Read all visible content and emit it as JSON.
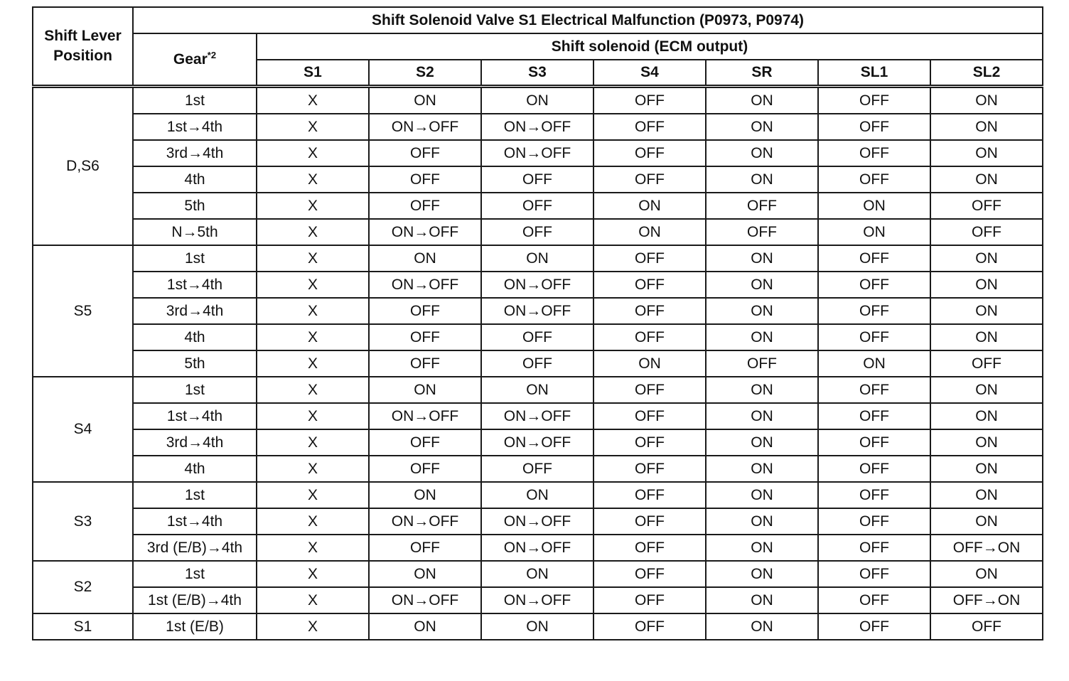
{
  "header": {
    "shift_lever_position": "Shift Lever Position",
    "gear": "Gear",
    "gear_note": "*2",
    "title": "Shift Solenoid Valve S1 Electrical Malfunction (P0973, P0974)",
    "solenoid_group": "Shift solenoid (ECM output)",
    "solenoids": [
      "S1",
      "S2",
      "S3",
      "S4",
      "SR",
      "SL1",
      "SL2"
    ]
  },
  "groups": [
    {
      "position": "D,S6",
      "rows": [
        {
          "gear": "1st",
          "values": [
            "X",
            "ON",
            "ON",
            "OFF",
            "ON",
            "OFF",
            "ON"
          ]
        },
        {
          "gear": "1st→4th",
          "values": [
            "X",
            "ON→OFF",
            "ON→OFF",
            "OFF",
            "ON",
            "OFF",
            "ON"
          ]
        },
        {
          "gear": "3rd→4th",
          "values": [
            "X",
            "OFF",
            "ON→OFF",
            "OFF",
            "ON",
            "OFF",
            "ON"
          ]
        },
        {
          "gear": "4th",
          "values": [
            "X",
            "OFF",
            "OFF",
            "OFF",
            "ON",
            "OFF",
            "ON"
          ]
        },
        {
          "gear": "5th",
          "values": [
            "X",
            "OFF",
            "OFF",
            "ON",
            "OFF",
            "ON",
            "OFF"
          ]
        },
        {
          "gear": "N→5th",
          "values": [
            "X",
            "ON→OFF",
            "OFF",
            "ON",
            "OFF",
            "ON",
            "OFF"
          ]
        }
      ]
    },
    {
      "position": "S5",
      "rows": [
        {
          "gear": "1st",
          "values": [
            "X",
            "ON",
            "ON",
            "OFF",
            "ON",
            "OFF",
            "ON"
          ]
        },
        {
          "gear": "1st→4th",
          "values": [
            "X",
            "ON→OFF",
            "ON→OFF",
            "OFF",
            "ON",
            "OFF",
            "ON"
          ]
        },
        {
          "gear": "3rd→4th",
          "values": [
            "X",
            "OFF",
            "ON→OFF",
            "OFF",
            "ON",
            "OFF",
            "ON"
          ]
        },
        {
          "gear": "4th",
          "values": [
            "X",
            "OFF",
            "OFF",
            "OFF",
            "ON",
            "OFF",
            "ON"
          ]
        },
        {
          "gear": "5th",
          "values": [
            "X",
            "OFF",
            "OFF",
            "ON",
            "OFF",
            "ON",
            "OFF"
          ]
        }
      ]
    },
    {
      "position": "S4",
      "rows": [
        {
          "gear": "1st",
          "values": [
            "X",
            "ON",
            "ON",
            "OFF",
            "ON",
            "OFF",
            "ON"
          ]
        },
        {
          "gear": "1st→4th",
          "values": [
            "X",
            "ON→OFF",
            "ON→OFF",
            "OFF",
            "ON",
            "OFF",
            "ON"
          ]
        },
        {
          "gear": "3rd→4th",
          "values": [
            "X",
            "OFF",
            "ON→OFF",
            "OFF",
            "ON",
            "OFF",
            "ON"
          ]
        },
        {
          "gear": "4th",
          "values": [
            "X",
            "OFF",
            "OFF",
            "OFF",
            "ON",
            "OFF",
            "ON"
          ]
        }
      ]
    },
    {
      "position": "S3",
      "rows": [
        {
          "gear": "1st",
          "values": [
            "X",
            "ON",
            "ON",
            "OFF",
            "ON",
            "OFF",
            "ON"
          ]
        },
        {
          "gear": "1st→4th",
          "values": [
            "X",
            "ON→OFF",
            "ON→OFF",
            "OFF",
            "ON",
            "OFF",
            "ON"
          ]
        },
        {
          "gear": "3rd (E/B)→4th",
          "values": [
            "X",
            "OFF",
            "ON→OFF",
            "OFF",
            "ON",
            "OFF",
            "OFF→ON"
          ]
        }
      ]
    },
    {
      "position": "S2",
      "rows": [
        {
          "gear": "1st",
          "values": [
            "X",
            "ON",
            "ON",
            "OFF",
            "ON",
            "OFF",
            "ON"
          ]
        },
        {
          "gear": "1st (E/B)→4th",
          "values": [
            "X",
            "ON→OFF",
            "ON→OFF",
            "OFF",
            "ON",
            "OFF",
            "OFF→ON"
          ]
        }
      ]
    },
    {
      "position": "S1",
      "rows": [
        {
          "gear": "1st (E/B)",
          "values": [
            "X",
            "ON",
            "ON",
            "OFF",
            "ON",
            "OFF",
            "OFF"
          ]
        }
      ]
    }
  ]
}
